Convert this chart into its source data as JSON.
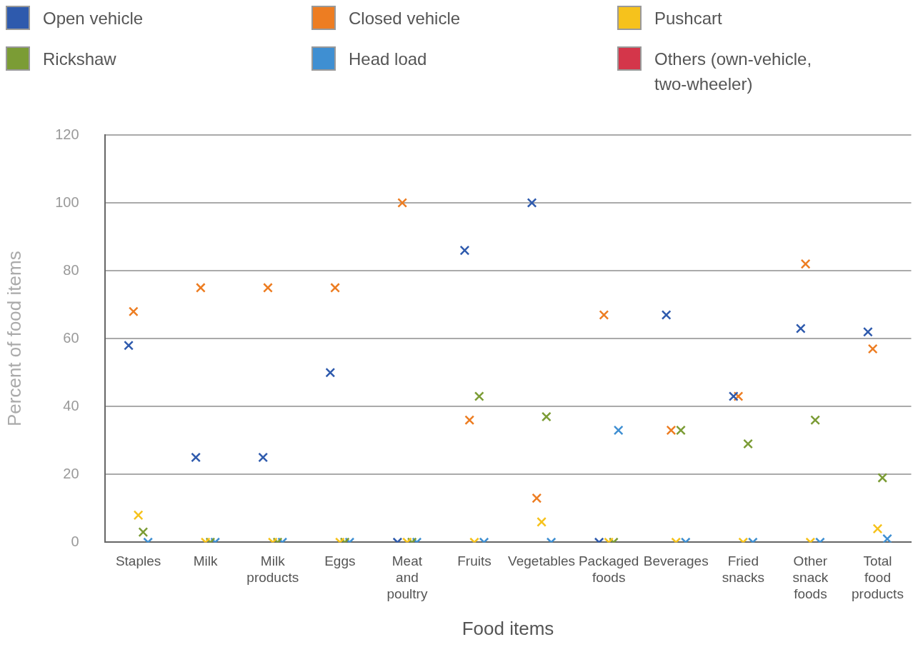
{
  "chart_data": {
    "type": "scatter",
    "xlabel": "Food items",
    "ylabel": "Percent of food items",
    "categories": [
      "Staples",
      "Milk",
      "Milk products",
      "Eggs",
      "Meat and poultry",
      "Fruits",
      "Vegetables",
      "Packaged foods",
      "Beverages",
      "Fried snacks",
      "Other snack foods",
      "Total food products"
    ],
    "series": [
      {
        "name": "Open vehicle",
        "color": "#2e5aad",
        "values": [
          58,
          25,
          25,
          50,
          0,
          86,
          100,
          0,
          67,
          43,
          63,
          62
        ]
      },
      {
        "name": "Closed vehicle",
        "color": "#ed7d22",
        "values": [
          68,
          75,
          75,
          75,
          100,
          36,
          13,
          67,
          33,
          43,
          82,
          57
        ]
      },
      {
        "name": "Pushcart",
        "color": "#f6c21c",
        "values": [
          8,
          0,
          0,
          0,
          0,
          0,
          6,
          0,
          0,
          0,
          0,
          4
        ]
      },
      {
        "name": "Rickshaw",
        "color": "#7b9c35",
        "values": [
          3,
          0,
          0,
          0,
          0,
          43,
          37,
          0,
          33,
          29,
          36,
          19
        ]
      },
      {
        "name": "Head load",
        "color": "#3f8fd2",
        "values": [
          0,
          0,
          0,
          0,
          0,
          0,
          0,
          33,
          0,
          0,
          0,
          1
        ]
      },
      {
        "name": "Others (own-vehicle, two-wheeler)",
        "color": "#d4364a",
        "values": [
          null,
          null,
          null,
          null,
          null,
          null,
          null,
          null,
          null,
          null,
          null,
          null
        ]
      }
    ],
    "ylim": [
      0,
      120
    ],
    "yticks": [
      0,
      20,
      40,
      60,
      80,
      100,
      120
    ],
    "grid": "y",
    "legend": "top",
    "marker": "cross"
  }
}
